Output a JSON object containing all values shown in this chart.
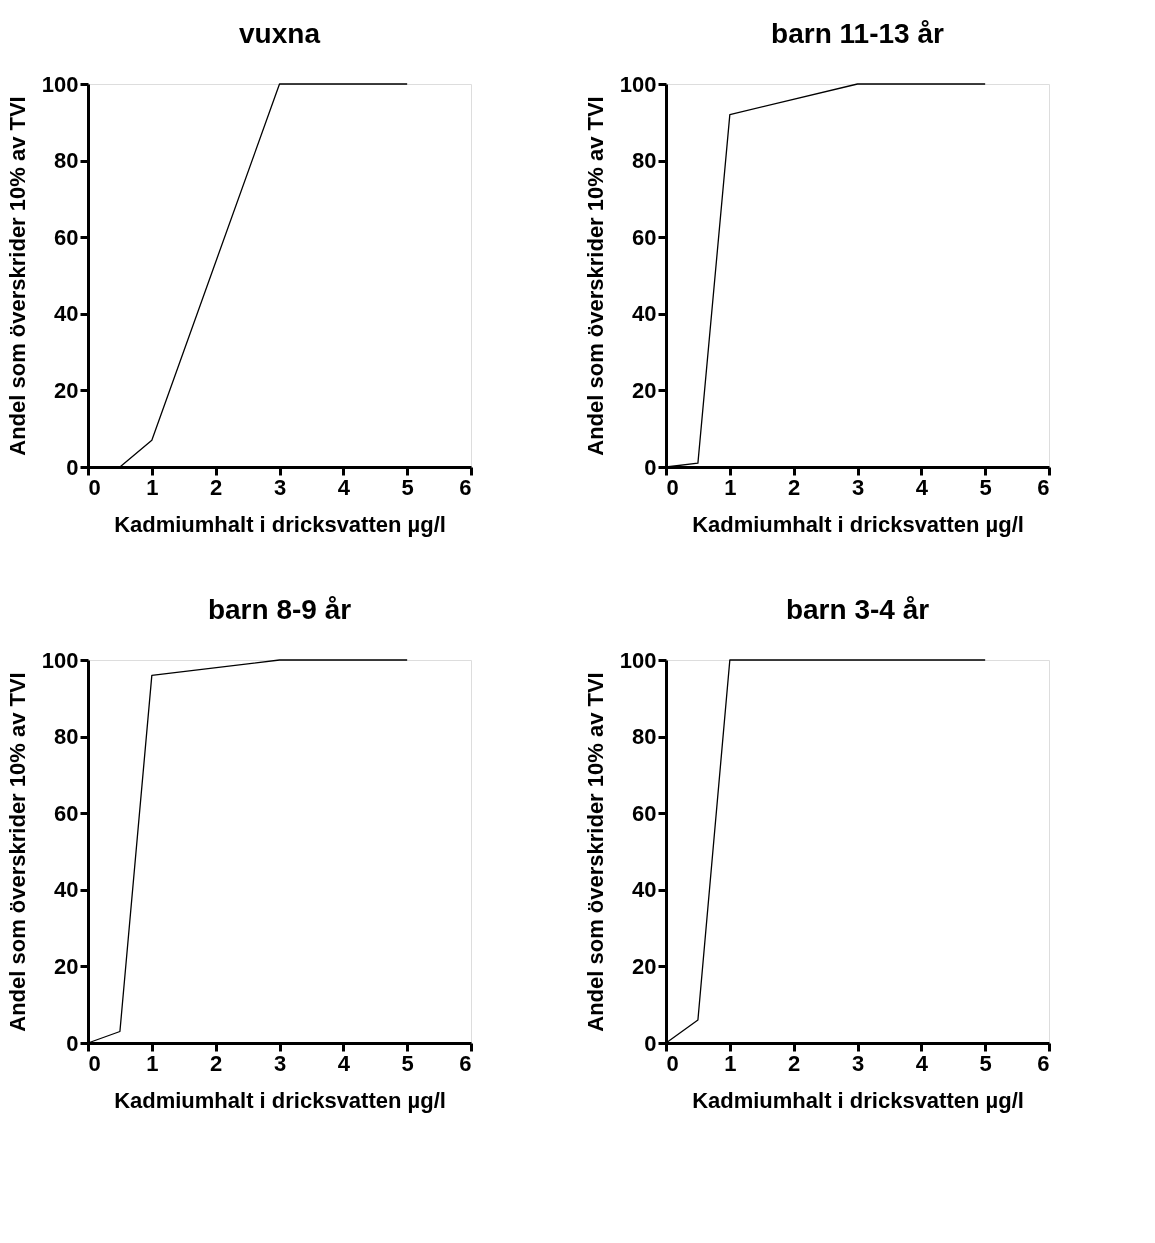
{
  "chart_data": [
    {
      "type": "line",
      "title": "vuxna",
      "xlabel": "Kadmiumhalt i dricksvatten µg/l",
      "ylabel": "Andel som överskrider 10% av TVI",
      "x": [
        0,
        0.5,
        1,
        3,
        5
      ],
      "series": [
        {
          "color": "#000000",
          "values": [
            0,
            0,
            7,
            100,
            100
          ]
        }
      ],
      "xlim": [
        0,
        6
      ],
      "xticks": [
        0,
        1,
        2,
        3,
        4,
        5,
        6
      ],
      "ylim": [
        0,
        100
      ],
      "yticks": [
        0,
        20,
        40,
        60,
        80,
        100
      ],
      "grid": false,
      "marker": "none",
      "line_style": "solid"
    },
    {
      "type": "line",
      "title": "barn 11-13 år",
      "xlabel": "Kadmiumhalt i dricksvatten µg/l",
      "ylabel": "Andel som överskrider 10% av TVI",
      "x": [
        0,
        0.5,
        1,
        3,
        5
      ],
      "series": [
        {
          "color": "#000000",
          "values": [
            0,
            1,
            92,
            100,
            100
          ]
        }
      ],
      "xlim": [
        0,
        6
      ],
      "xticks": [
        0,
        1,
        2,
        3,
        4,
        5,
        6
      ],
      "ylim": [
        0,
        100
      ],
      "yticks": [
        0,
        20,
        40,
        60,
        80,
        100
      ],
      "grid": false,
      "marker": "none",
      "line_style": "solid"
    },
    {
      "type": "line",
      "title": "barn 8-9 år",
      "xlabel": "Kadmiumhalt i dricksvatten µg/l",
      "ylabel": "Andel som överskrider 10% av TVI",
      "x": [
        0,
        0.5,
        1,
        3,
        5
      ],
      "series": [
        {
          "color": "#000000",
          "values": [
            0,
            3,
            96,
            100,
            100
          ]
        }
      ],
      "xlim": [
        0,
        6
      ],
      "xticks": [
        0,
        1,
        2,
        3,
        4,
        5,
        6
      ],
      "ylim": [
        0,
        100
      ],
      "yticks": [
        0,
        20,
        40,
        60,
        80,
        100
      ],
      "grid": false,
      "marker": "none",
      "line_style": "solid"
    },
    {
      "type": "line",
      "title": "barn 3-4 år",
      "xlabel": "Kadmiumhalt i dricksvatten µg/l",
      "ylabel": "Andel som överskrider 10% av TVI",
      "x": [
        0,
        0.5,
        1,
        3,
        5
      ],
      "series": [
        {
          "color": "#000000",
          "values": [
            0,
            6,
            100,
            100,
            100
          ]
        }
      ],
      "xlim": [
        0,
        6
      ],
      "xticks": [
        0,
        1,
        2,
        3,
        4,
        5,
        6
      ],
      "ylim": [
        0,
        100
      ],
      "yticks": [
        0,
        20,
        40,
        60,
        80,
        100
      ],
      "grid": false,
      "marker": "none",
      "line_style": "solid"
    }
  ]
}
